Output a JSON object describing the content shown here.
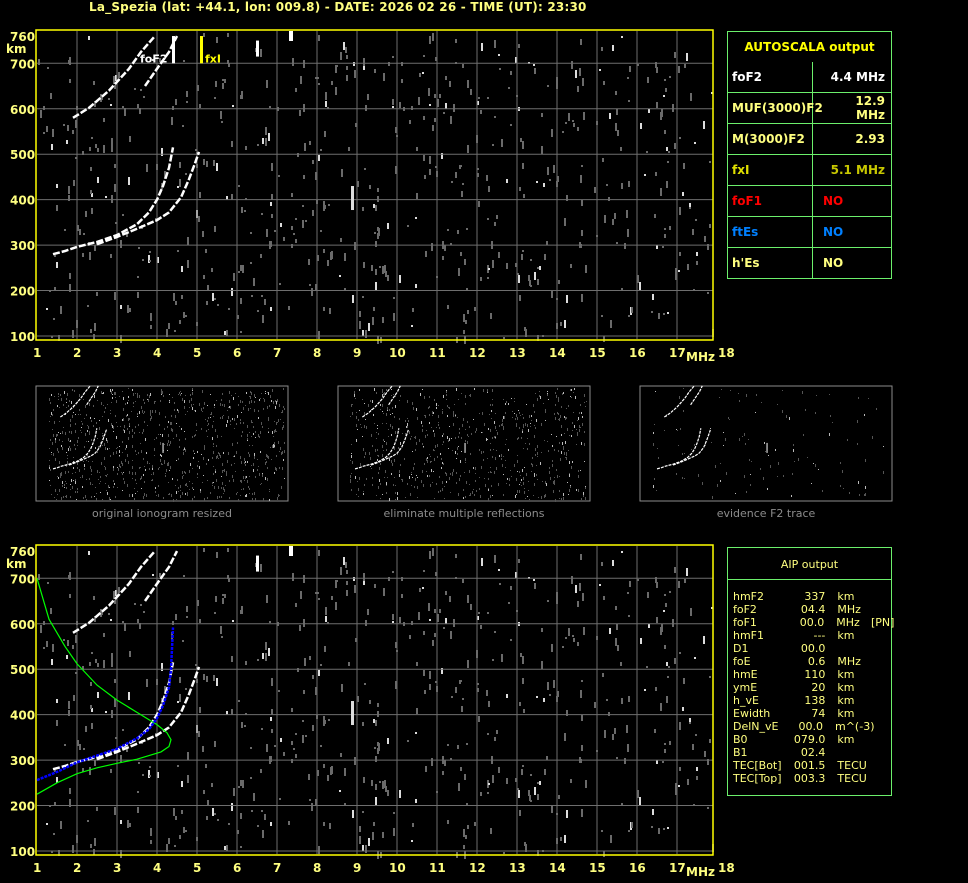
{
  "title": "La_Spezia (lat: +44.1, lon: 009.8) - DATE: 2026 02 26 - TIME (UT): 23:30",
  "autoscala": {
    "header": "AUTOSCALA output",
    "header_color": "#ffff00",
    "rows": [
      {
        "key": "foF2",
        "value": "4.4 MHz",
        "color": "#ffffff"
      },
      {
        "key": "MUF(3000)F2",
        "value": "12.9 MHz",
        "color": "#ffff80"
      },
      {
        "key": "M(3000)F2",
        "value": "2.93",
        "color": "#ffff80"
      },
      {
        "key": "fxI",
        "value": "5.1 MHz",
        "color": "#e0e000",
        "value_color": "#c8c800"
      },
      {
        "key": "foF1",
        "value": "NO",
        "color": "#ff0000"
      },
      {
        "key": "ftEs",
        "value": "NO",
        "color": "#0080ff"
      },
      {
        "key": "h'Es",
        "value": "NO",
        "color": "#ffff80"
      }
    ]
  },
  "aip": {
    "header": "AIP output",
    "rows": [
      [
        "hmF2",
        "337",
        "km",
        ""
      ],
      [
        "foF2",
        "04.4",
        "MHz",
        ""
      ],
      [
        "foF1",
        "00.0",
        "MHz",
        "[PN]"
      ],
      [
        "hmF1",
        "---",
        "km",
        ""
      ],
      [
        "D1",
        "00.0",
        "",
        ""
      ],
      [
        "foE",
        "0.6",
        "MHz",
        ""
      ],
      [
        "hmE",
        "110",
        "km",
        ""
      ],
      [
        "ymE",
        "20",
        "km",
        ""
      ],
      [
        "h_vE",
        "138",
        "km",
        ""
      ],
      [
        "Ewidth",
        "74",
        "km",
        ""
      ],
      [
        "DelN_vE",
        "00.0",
        "m^(-3)",
        ""
      ],
      [
        "B0",
        "079.0",
        "km",
        ""
      ],
      [
        "B1",
        "02.4",
        "",
        ""
      ],
      [
        "TEC[Bot]",
        "001.5",
        "TECU",
        ""
      ],
      [
        "TEC[Top]",
        "003.3",
        "TECU",
        ""
      ]
    ]
  },
  "thumbnails": [
    {
      "caption": "original ionogram resized"
    },
    {
      "caption": "eliminate multiple reflections"
    },
    {
      "caption": "evidence F2 trace"
    }
  ],
  "chart_data": [
    {
      "type": "scatter",
      "name_label": "ionogram",
      "xlabel": "MHz",
      "ylabel": "km",
      "xlim": [
        1,
        18
      ],
      "ylim": [
        100,
        760
      ],
      "xticks": [
        1,
        2,
        3,
        4,
        5,
        6,
        7,
        8,
        9,
        10,
        11,
        12,
        13,
        14,
        15,
        16,
        17,
        18
      ],
      "yticks": [
        100,
        200,
        300,
        400,
        500,
        600,
        700,
        760
      ],
      "grid": true,
      "annotations": [
        {
          "text": "foF2",
          "x": 4.4,
          "color": "#ffffff"
        },
        {
          "text": "fxI",
          "x": 5.1,
          "color": "#ffff00"
        }
      ],
      "traces": {
        "o_trace": [
          [
            1.4,
            280
          ],
          [
            1.7,
            287
          ],
          [
            2,
            296
          ],
          [
            2.5,
            307
          ],
          [
            3,
            322
          ],
          [
            3.5,
            346
          ],
          [
            3.8,
            372
          ],
          [
            4.0,
            400
          ],
          [
            4.15,
            430
          ],
          [
            4.3,
            470
          ],
          [
            4.4,
            515
          ]
        ],
        "x_trace": [
          [
            2.5,
            302
          ],
          [
            3,
            318
          ],
          [
            3.5,
            336
          ],
          [
            4.0,
            355
          ],
          [
            4.3,
            372
          ],
          [
            4.6,
            405
          ],
          [
            4.8,
            445
          ],
          [
            4.95,
            480
          ],
          [
            5.05,
            505
          ]
        ],
        "o_trace_2hop": [
          [
            1.9,
            580
          ],
          [
            2.3,
            602
          ],
          [
            2.8,
            640
          ],
          [
            3.3,
            688
          ],
          [
            3.6,
            725
          ],
          [
            3.95,
            760
          ]
        ],
        "x_trace_2hop": [
          [
            3.7,
            650
          ],
          [
            4.0,
            688
          ],
          [
            4.3,
            725
          ],
          [
            4.5,
            760
          ]
        ]
      }
    },
    {
      "type": "line",
      "name_label": "ionogram-with-profile",
      "xlabel": "MHz",
      "ylabel": "km",
      "xlim": [
        1,
        18
      ],
      "ylim": [
        100,
        760
      ],
      "grid": true,
      "profile_color": "#00ff00",
      "fitted_trace_color": "#0000ff",
      "profile": [
        [
          1,
          700
        ],
        [
          1.3,
          610
        ],
        [
          1.7,
          550
        ],
        [
          2,
          512
        ],
        [
          2.5,
          465
        ],
        [
          3,
          432
        ],
        [
          3.5,
          405
        ],
        [
          4,
          378
        ],
        [
          4.25,
          360
        ],
        [
          4.35,
          345
        ],
        [
          4.3,
          330
        ],
        [
          4.1,
          318
        ],
        [
          3.5,
          302
        ],
        [
          3,
          293
        ],
        [
          2.5,
          283
        ],
        [
          2,
          270
        ],
        [
          1.5,
          250
        ],
        [
          1,
          225
        ]
      ],
      "fitted_trace": [
        [
          1,
          256
        ],
        [
          1.5,
          274
        ],
        [
          2,
          295
        ],
        [
          2.5,
          310
        ],
        [
          3,
          325
        ],
        [
          3.5,
          348
        ],
        [
          3.8,
          368
        ],
        [
          4.0,
          392
        ],
        [
          4.15,
          420
        ],
        [
          4.3,
          460
        ],
        [
          4.35,
          500
        ],
        [
          4.4,
          592
        ]
      ]
    }
  ]
}
